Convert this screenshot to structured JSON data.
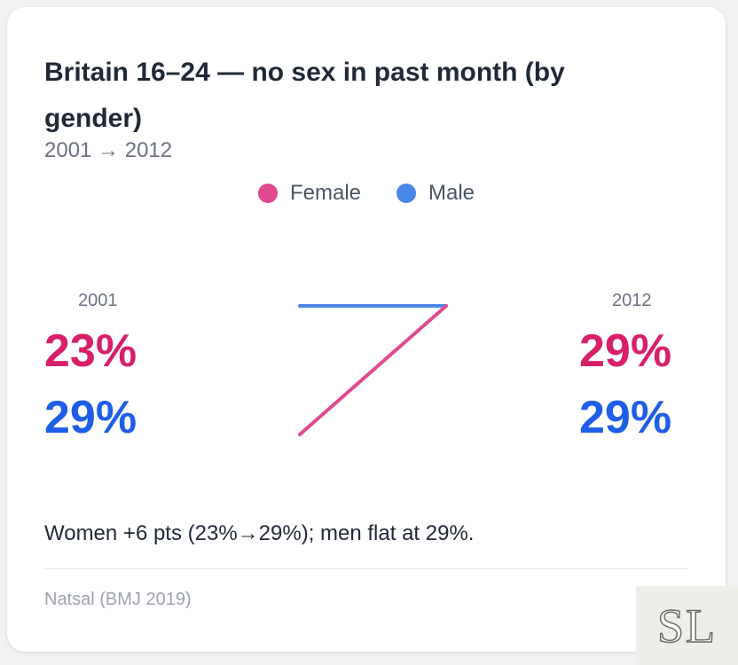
{
  "chart_data": {
    "type": "line",
    "title": "Britain 16–24 — no sex in past month (by gender)",
    "subtitle": "2001 → 2012",
    "x": [
      "2001",
      "2012"
    ],
    "series": [
      {
        "name": "Female",
        "values": [
          23,
          29
        ],
        "labels": [
          "23%",
          "29%"
        ],
        "color": "#e0498f",
        "text_color": "#d81f6a"
      },
      {
        "name": "Male",
        "values": [
          29,
          29
        ],
        "labels": [
          "29%",
          "29%"
        ],
        "color": "#4a86e8",
        "text_color": "#1f5ee6"
      }
    ],
    "ylim": [
      23,
      29
    ],
    "legend_position": "top-center",
    "annotation": "Women +6 pts (23%→29%); men flat at 29%.",
    "source": "Natsal (BMJ 2019)"
  },
  "logo": {
    "text": "SL"
  }
}
